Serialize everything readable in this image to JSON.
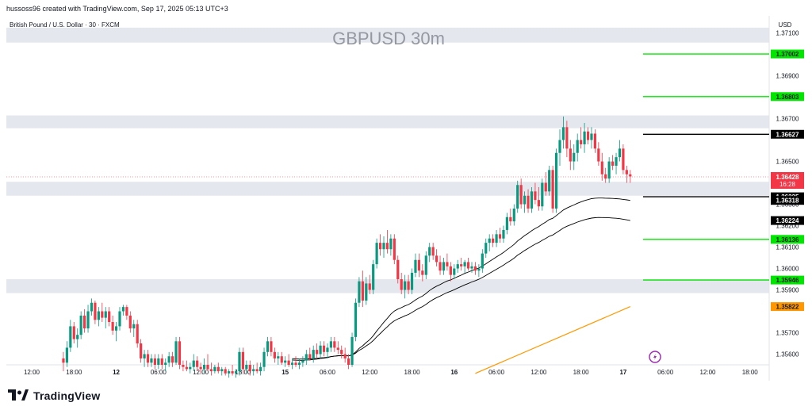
{
  "header": {
    "attribution": "hussoss96 created with TradingView.com, Sep 17, 2025 05:13 UTC+3"
  },
  "chart_data": {
    "type": "candlestick",
    "symbol_label": "British Pound / U.S. Dollar · 30 · FXCM",
    "title": "GBPUSD 30m",
    "currency": "USD",
    "ylim": [
      1.3555,
      1.3718
    ],
    "y_ticks": [
      1.371,
      1.369,
      1.367,
      1.365,
      1.363,
      1.362,
      1.361,
      1.36,
      1.359,
      1.357,
      1.356
    ],
    "y_tick_labels": [
      "1.37100",
      "1.36900",
      "1.36700",
      "1.36500",
      "1.36300",
      "1.36200",
      "1.36100",
      "1.36000",
      "1.35900",
      "1.35700",
      "1.35600"
    ],
    "x_ticks": [
      {
        "i": 0,
        "label": "12:00"
      },
      {
        "i": 12,
        "label": "18:00"
      },
      {
        "i": 24,
        "label": "12"
      },
      {
        "i": 36,
        "label": "06:00"
      },
      {
        "i": 48,
        "label": "12:00"
      },
      {
        "i": 60,
        "label": "18:00"
      },
      {
        "i": 72,
        "label": "15"
      },
      {
        "i": 84,
        "label": "06:00"
      },
      {
        "i": 96,
        "label": "12:00"
      },
      {
        "i": 108,
        "label": "18:00"
      },
      {
        "i": 120,
        "label": "16"
      },
      {
        "i": 132,
        "label": "06:00"
      },
      {
        "i": 144,
        "label": "12:00"
      },
      {
        "i": 156,
        "label": "18:00"
      },
      {
        "i": 168,
        "label": "17"
      },
      {
        "i": 180,
        "label": "06:00"
      },
      {
        "i": 192,
        "label": "12:00"
      },
      {
        "i": 204,
        "label": "18:00"
      }
    ],
    "bold_x_labels": [
      "12",
      "15",
      "16",
      "17"
    ],
    "zones": [
      {
        "y1": 1.37125,
        "y2": 1.37055
      },
      {
        "y1": 1.36715,
        "y2": 1.36655
      },
      {
        "y1": 1.36405,
        "y2": 1.3634
      },
      {
        "y1": 1.3595,
        "y2": 1.35885
      }
    ],
    "levels": [
      {
        "price": 1.37002,
        "label": "1.37002",
        "color": "#00e600"
      },
      {
        "price": 1.36803,
        "label": "1.36803",
        "color": "#00e600"
      },
      {
        "price": 1.36627,
        "label": "1.36627",
        "color": "#000000"
      },
      {
        "price": 1.36335,
        "label": "1.36335",
        "color": "#000000"
      },
      {
        "price": 1.36136,
        "label": "1.36136",
        "color": "#00e600"
      },
      {
        "price": 1.35946,
        "label": "1.35946",
        "color": "#00e600"
      }
    ],
    "indicator_labels": [
      {
        "price": 1.36318,
        "label": "1.36318",
        "color": "#000000"
      },
      {
        "price": 1.36224,
        "label": "1.36224",
        "color": "#000000"
      },
      {
        "price": 1.35822,
        "label": "1.35822",
        "color": "#ff9800"
      }
    ],
    "current_price": {
      "price": 1.36428,
      "label": "1.36428",
      "countdown": "16:28",
      "color": "#f23645"
    },
    "candles": [
      [
        9,
        1.3558,
        1.3561,
        1.3552,
        1.3556
      ],
      [
        10,
        1.3556,
        1.3566,
        1.3554,
        1.3563
      ],
      [
        11,
        1.3563,
        1.3576,
        1.3561,
        1.3573
      ],
      [
        12,
        1.3573,
        1.3575,
        1.3565,
        1.3567
      ],
      [
        13,
        1.3567,
        1.3572,
        1.3563,
        1.3569
      ],
      [
        14,
        1.3569,
        1.358,
        1.3567,
        1.3578
      ],
      [
        15,
        1.3578,
        1.3581,
        1.357,
        1.3572
      ],
      [
        16,
        1.3572,
        1.3583,
        1.357,
        1.358
      ],
      [
        17,
        1.358,
        1.3586,
        1.3578,
        1.3584
      ],
      [
        18,
        1.3584,
        1.3585,
        1.3574,
        1.3576
      ],
      [
        19,
        1.3576,
        1.3582,
        1.3573,
        1.358
      ],
      [
        20,
        1.358,
        1.3584,
        1.3575,
        1.3577
      ],
      [
        21,
        1.3577,
        1.3582,
        1.3572,
        1.358
      ],
      [
        22,
        1.358,
        1.3582,
        1.3573,
        1.3575
      ],
      [
        23,
        1.3575,
        1.3578,
        1.3569,
        1.3571
      ],
      [
        24,
        1.3571,
        1.3575,
        1.3566,
        1.3573
      ],
      [
        25,
        1.3573,
        1.3582,
        1.3571,
        1.358
      ],
      [
        26,
        1.358,
        1.3583,
        1.3578,
        1.3582
      ],
      [
        27,
        1.3582,
        1.3583,
        1.3576,
        1.3578
      ],
      [
        28,
        1.3578,
        1.358,
        1.357,
        1.3572
      ],
      [
        29,
        1.3572,
        1.3576,
        1.3568,
        1.3574
      ],
      [
        30,
        1.3574,
        1.3576,
        1.3563,
        1.3565
      ],
      [
        31,
        1.3565,
        1.3567,
        1.3556,
        1.3558
      ],
      [
        32,
        1.3558,
        1.3562,
        1.3554,
        1.356
      ],
      [
        33,
        1.356,
        1.3562,
        1.3554,
        1.3556
      ],
      [
        34,
        1.3556,
        1.356,
        1.3554,
        1.3558
      ],
      [
        35,
        1.3558,
        1.356,
        1.3553,
        1.3555
      ],
      [
        36,
        1.3555,
        1.356,
        1.3553,
        1.3558
      ],
      [
        37,
        1.3558,
        1.356,
        1.3553,
        1.3555
      ],
      [
        38,
        1.3555,
        1.3558,
        1.3552,
        1.3556
      ],
      [
        39,
        1.3556,
        1.3561,
        1.3554,
        1.3559
      ],
      [
        40,
        1.3559,
        1.3561,
        1.3554,
        1.3556
      ],
      [
        41,
        1.3556,
        1.3568,
        1.3555,
        1.3566
      ],
      [
        42,
        1.3566,
        1.3568,
        1.3553,
        1.3555
      ],
      [
        43,
        1.3555,
        1.3557,
        1.3552,
        1.3554
      ],
      [
        44,
        1.3554,
        1.3557,
        1.3552,
        1.3553
      ],
      [
        45,
        1.3553,
        1.3556,
        1.3551,
        1.3554
      ],
      [
        46,
        1.3554,
        1.356,
        1.3552,
        1.3557
      ],
      [
        47,
        1.3557,
        1.3559,
        1.3552,
        1.3554
      ],
      [
        48,
        1.3554,
        1.3556,
        1.3551,
        1.3553
      ],
      [
        49,
        1.3553,
        1.3558,
        1.3551,
        1.3555
      ],
      [
        50,
        1.3555,
        1.356,
        1.3552,
        1.3553
      ],
      [
        51,
        1.3553,
        1.3556,
        1.355,
        1.3552
      ],
      [
        52,
        1.3552,
        1.3555,
        1.3551,
        1.3554
      ],
      [
        53,
        1.3554,
        1.3556,
        1.3551,
        1.3552
      ],
      [
        54,
        1.3552,
        1.3554,
        1.355,
        1.3553
      ],
      [
        55,
        1.3553,
        1.3554,
        1.355,
        1.3551
      ],
      [
        56,
        1.3551,
        1.3553,
        1.3549,
        1.3552
      ],
      [
        57,
        1.3552,
        1.3555,
        1.355,
        1.3551
      ],
      [
        58,
        1.3551,
        1.3553,
        1.3549,
        1.3552
      ],
      [
        59,
        1.3552,
        1.3563,
        1.355,
        1.3561
      ],
      [
        60,
        1.3561,
        1.3563,
        1.3551,
        1.3553
      ],
      [
        61,
        1.3553,
        1.3557,
        1.3551,
        1.3555
      ],
      [
        62,
        1.3555,
        1.3557,
        1.355,
        1.3552
      ],
      [
        63,
        1.3552,
        1.3555,
        1.355,
        1.3553
      ],
      [
        64,
        1.3553,
        1.3556,
        1.3551,
        1.3552
      ],
      [
        65,
        1.3552,
        1.3556,
        1.355,
        1.3554
      ],
      [
        66,
        1.3554,
        1.3563,
        1.3552,
        1.3561
      ],
      [
        67,
        1.3561,
        1.3568,
        1.3559,
        1.3566
      ],
      [
        68,
        1.3566,
        1.3568,
        1.3559,
        1.3561
      ],
      [
        69,
        1.3561,
        1.3563,
        1.3556,
        1.3558
      ],
      [
        70,
        1.3558,
        1.3561,
        1.3555,
        1.3559
      ],
      [
        71,
        1.3559,
        1.3561,
        1.3555,
        1.3556
      ],
      [
        72,
        1.3556,
        1.3559,
        1.3554,
        1.3557
      ],
      [
        73,
        1.3557,
        1.356,
        1.3554,
        1.3555
      ],
      [
        74,
        1.3555,
        1.3558,
        1.3553,
        1.3556
      ],
      [
        75,
        1.3556,
        1.3559,
        1.3554,
        1.3555
      ],
      [
        76,
        1.3555,
        1.3558,
        1.3553,
        1.3556
      ],
      [
        77,
        1.3556,
        1.3559,
        1.3554,
        1.3557
      ],
      [
        78,
        1.3557,
        1.3562,
        1.3555,
        1.356
      ],
      [
        79,
        1.356,
        1.3563,
        1.3557,
        1.3558
      ],
      [
        80,
        1.3558,
        1.3564,
        1.3556,
        1.3562
      ],
      [
        81,
        1.3562,
        1.3565,
        1.3558,
        1.356
      ],
      [
        82,
        1.356,
        1.3566,
        1.3558,
        1.3564
      ],
      [
        83,
        1.3564,
        1.3566,
        1.3559,
        1.3561
      ],
      [
        84,
        1.3561,
        1.3565,
        1.3558,
        1.3563
      ],
      [
        85,
        1.3563,
        1.3568,
        1.3561,
        1.3566
      ],
      [
        86,
        1.3566,
        1.3568,
        1.3561,
        1.3563
      ],
      [
        87,
        1.3563,
        1.3566,
        1.356,
        1.3562
      ],
      [
        88,
        1.3562,
        1.3564,
        1.3558,
        1.356
      ],
      [
        89,
        1.356,
        1.3563,
        1.3556,
        1.3558
      ],
      [
        90,
        1.3558,
        1.356,
        1.3553,
        1.3555
      ],
      [
        91,
        1.3555,
        1.357,
        1.3554,
        1.3568
      ],
      [
        92,
        1.3568,
        1.3586,
        1.3566,
        1.3584
      ],
      [
        93,
        1.3584,
        1.3596,
        1.3582,
        1.3594
      ],
      [
        94,
        1.3594,
        1.3599,
        1.3582,
        1.3585
      ],
      [
        95,
        1.3585,
        1.3596,
        1.3583,
        1.3593
      ],
      [
        96,
        1.3593,
        1.3597,
        1.3588,
        1.359
      ],
      [
        97,
        1.359,
        1.3604,
        1.3588,
        1.3602
      ],
      [
        98,
        1.3602,
        1.3614,
        1.36,
        1.3612
      ],
      [
        99,
        1.3612,
        1.3616,
        1.3606,
        1.3609
      ],
      [
        100,
        1.3609,
        1.3615,
        1.3605,
        1.3612
      ],
      [
        101,
        1.3612,
        1.3618,
        1.3607,
        1.3609
      ],
      [
        102,
        1.3609,
        1.3616,
        1.3606,
        1.3614
      ],
      [
        103,
        1.3614,
        1.3616,
        1.3602,
        1.3604
      ],
      [
        104,
        1.3604,
        1.3606,
        1.3593,
        1.3595
      ],
      [
        105,
        1.3595,
        1.3598,
        1.3588,
        1.359
      ],
      [
        106,
        1.359,
        1.3597,
        1.3586,
        1.3594
      ],
      [
        107,
        1.3594,
        1.3597,
        1.3588,
        1.359
      ],
      [
        108,
        1.359,
        1.36,
        1.3588,
        1.3598
      ],
      [
        109,
        1.3598,
        1.3607,
        1.3596,
        1.3604
      ],
      [
        110,
        1.3604,
        1.3607,
        1.3596,
        1.3599
      ],
      [
        111,
        1.3599,
        1.3602,
        1.3594,
        1.3597
      ],
      [
        112,
        1.3597,
        1.3608,
        1.3595,
        1.3606
      ],
      [
        113,
        1.3606,
        1.3612,
        1.3603,
        1.361
      ],
      [
        114,
        1.361,
        1.3612,
        1.3604,
        1.3606
      ],
      [
        115,
        1.3606,
        1.3609,
        1.3601,
        1.3603
      ],
      [
        116,
        1.3603,
        1.3606,
        1.3597,
        1.3599
      ],
      [
        117,
        1.3599,
        1.3605,
        1.3597,
        1.3603
      ],
      [
        118,
        1.3603,
        1.3607,
        1.3599,
        1.3601
      ],
      [
        119,
        1.3601,
        1.3603,
        1.3594,
        1.3597
      ],
      [
        120,
        1.3597,
        1.3602,
        1.3595,
        1.36
      ],
      [
        121,
        1.36,
        1.3604,
        1.3598,
        1.3602
      ],
      [
        122,
        1.3602,
        1.3605,
        1.3599,
        1.3601
      ],
      [
        123,
        1.3601,
        1.3604,
        1.3598,
        1.3603
      ],
      [
        124,
        1.3603,
        1.3605,
        1.3599,
        1.36
      ],
      [
        125,
        1.36,
        1.3603,
        1.3598,
        1.3601
      ],
      [
        126,
        1.3601,
        1.3603,
        1.3597,
        1.3599
      ],
      [
        127,
        1.3599,
        1.3602,
        1.3596,
        1.36
      ],
      [
        128,
        1.36,
        1.3609,
        1.3598,
        1.3607
      ],
      [
        129,
        1.3607,
        1.3614,
        1.3605,
        1.3612
      ],
      [
        130,
        1.3612,
        1.3616,
        1.3608,
        1.3614
      ],
      [
        131,
        1.3614,
        1.3616,
        1.361,
        1.3612
      ],
      [
        132,
        1.3612,
        1.3618,
        1.361,
        1.3616
      ],
      [
        133,
        1.3616,
        1.3619,
        1.3612,
        1.3614
      ],
      [
        134,
        1.3614,
        1.362,
        1.3612,
        1.3618
      ],
      [
        135,
        1.3618,
        1.3626,
        1.3616,
        1.3624
      ],
      [
        136,
        1.3624,
        1.3628,
        1.362,
        1.3622
      ],
      [
        137,
        1.3622,
        1.363,
        1.362,
        1.3628
      ],
      [
        138,
        1.3628,
        1.3641,
        1.3626,
        1.3639
      ],
      [
        139,
        1.3639,
        1.3642,
        1.3628,
        1.363
      ],
      [
        140,
        1.363,
        1.3636,
        1.3626,
        1.3634
      ],
      [
        141,
        1.3634,
        1.3637,
        1.3626,
        1.3628
      ],
      [
        142,
        1.3628,
        1.3638,
        1.3626,
        1.3636
      ],
      [
        143,
        1.3636,
        1.364,
        1.363,
        1.3632
      ],
      [
        144,
        1.3632,
        1.3638,
        1.3627,
        1.3629
      ],
      [
        145,
        1.3629,
        1.3642,
        1.3627,
        1.364
      ],
      [
        146,
        1.364,
        1.3645,
        1.3634,
        1.3636
      ],
      [
        147,
        1.3636,
        1.3648,
        1.3634,
        1.3646
      ],
      [
        148,
        1.3646,
        1.3648,
        1.3626,
        1.3628
      ],
      [
        149,
        1.3628,
        1.3656,
        1.3626,
        1.3654
      ],
      [
        150,
        1.3654,
        1.3665,
        1.3648,
        1.366
      ],
      [
        151,
        1.366,
        1.3671,
        1.3656,
        1.3666
      ],
      [
        152,
        1.3666,
        1.3669,
        1.3652,
        1.3656
      ],
      [
        153,
        1.3656,
        1.366,
        1.3646,
        1.365
      ],
      [
        154,
        1.365,
        1.3658,
        1.3646,
        1.3654
      ],
      [
        155,
        1.3654,
        1.3663,
        1.365,
        1.366
      ],
      [
        156,
        1.366,
        1.3666,
        1.3656,
        1.3658
      ],
      [
        157,
        1.3658,
        1.3668,
        1.3654,
        1.3664
      ],
      [
        158,
        1.3664,
        1.3666,
        1.3658,
        1.366
      ],
      [
        159,
        1.366,
        1.3666,
        1.3656,
        1.3663
      ],
      [
        160,
        1.3663,
        1.3665,
        1.3654,
        1.3656
      ],
      [
        161,
        1.3656,
        1.3659,
        1.3648,
        1.365
      ],
      [
        162,
        1.365,
        1.3654,
        1.3641,
        1.3644
      ],
      [
        163,
        1.3644,
        1.3647,
        1.364,
        1.3642
      ],
      [
        164,
        1.3642,
        1.3652,
        1.364,
        1.365
      ],
      [
        165,
        1.365,
        1.3653,
        1.3646,
        1.3648
      ],
      [
        166,
        1.3648,
        1.3654,
        1.3644,
        1.3652
      ],
      [
        167,
        1.3652,
        1.366,
        1.365,
        1.3656
      ],
      [
        168,
        1.3656,
        1.3658,
        1.3644,
        1.3646
      ],
      [
        169,
        1.3646,
        1.3648,
        1.364,
        1.3644
      ],
      [
        170,
        1.3644,
        1.3646,
        1.364,
        1.3643
      ]
    ]
  }
}
